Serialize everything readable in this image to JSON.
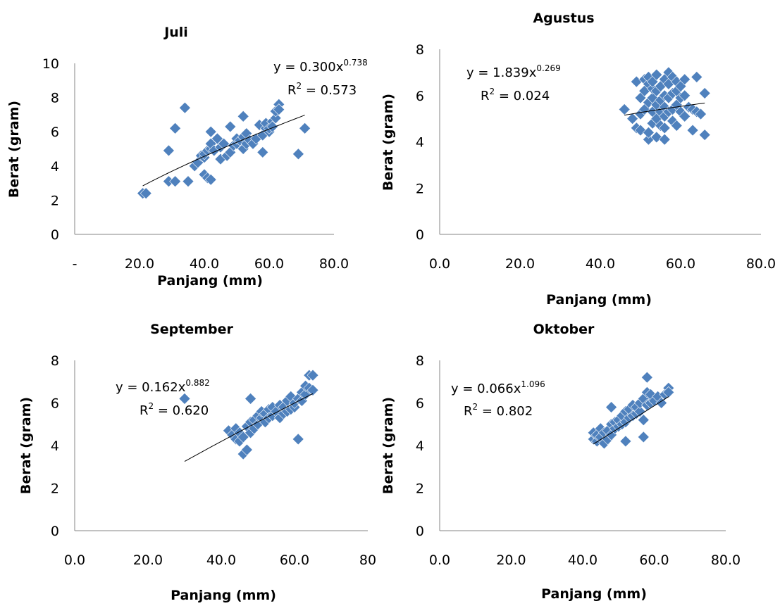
{
  "chart_data": [
    {
      "type": "scatter",
      "title": "Juli",
      "xlabel": "Panjang (mm)",
      "ylabel": "Berat (gram)",
      "xlim": [
        0,
        80
      ],
      "ylim": [
        0,
        10
      ],
      "xticks": [
        "-",
        "20.0",
        "40.0",
        "60.0",
        "80.0"
      ],
      "yticks": [
        "0",
        "2",
        "4",
        "6",
        "8",
        "10"
      ],
      "trendline": {
        "a": 0.3,
        "b": 0.738,
        "x_range": [
          21,
          71
        ]
      },
      "equation": {
        "base": "y = 0.300x",
        "exponent": "0.738"
      },
      "r2": {
        "label": "R",
        "sup": "2",
        "value": " = 0.573"
      },
      "points": [
        [
          21,
          2.4
        ],
        [
          22,
          2.4
        ],
        [
          29,
          4.9
        ],
        [
          29,
          3.1
        ],
        [
          31,
          3.1
        ],
        [
          31,
          6.2
        ],
        [
          34,
          7.4
        ],
        [
          35,
          3.1
        ],
        [
          37,
          4.0
        ],
        [
          38,
          4.2
        ],
        [
          39,
          4.6
        ],
        [
          40,
          4.5
        ],
        [
          40,
          4.7
        ],
        [
          40,
          3.5
        ],
        [
          41,
          3.3
        ],
        [
          42,
          3.2
        ],
        [
          41,
          4.9
        ],
        [
          42,
          5.0
        ],
        [
          42,
          5.3
        ],
        [
          42,
          6.0
        ],
        [
          43,
          4.9
        ],
        [
          44,
          5.6
        ],
        [
          45,
          4.4
        ],
        [
          45,
          5.1
        ],
        [
          46,
          5.3
        ],
        [
          47,
          4.6
        ],
        [
          48,
          4.8
        ],
        [
          48,
          6.3
        ],
        [
          49,
          5.2
        ],
        [
          50,
          5.3
        ],
        [
          50,
          5.6
        ],
        [
          51,
          5.5
        ],
        [
          52,
          5.0
        ],
        [
          52,
          5.7
        ],
        [
          52,
          6.9
        ],
        [
          53,
          5.9
        ],
        [
          53,
          5.3
        ],
        [
          54,
          5.5
        ],
        [
          55,
          5.3
        ],
        [
          56,
          5.6
        ],
        [
          57,
          6.4
        ],
        [
          58,
          5.8
        ],
        [
          58,
          4.8
        ],
        [
          59,
          6.2
        ],
        [
          59,
          6.5
        ],
        [
          60,
          6.0
        ],
        [
          60,
          6.2
        ],
        [
          61,
          6.6
        ],
        [
          61,
          6.3
        ],
        [
          62,
          6.8
        ],
        [
          62,
          7.2
        ],
        [
          63,
          7.6
        ],
        [
          63,
          7.3
        ],
        [
          69,
          4.7
        ],
        [
          71,
          6.2
        ]
      ]
    },
    {
      "type": "scatter",
      "title": "Agustus",
      "xlabel": "Panjang (mm)",
      "ylabel": "Berat (gram)",
      "xlim": [
        0,
        80
      ],
      "ylim": [
        0,
        8
      ],
      "xticks": [
        "0.0",
        "20.0",
        "40.0",
        "60.0",
        "80.0"
      ],
      "yticks": [
        "0",
        "2",
        "4",
        "6",
        "8"
      ],
      "trendline": {
        "a": 1.839,
        "b": 0.269,
        "x_range": [
          46,
          66
        ]
      },
      "equation": {
        "base": "y = 1.839x",
        "exponent": "0.269"
      },
      "r2": {
        "label": "R",
        "sup": "2",
        "value": " = 0.024"
      },
      "points": [
        [
          46,
          5.4
        ],
        [
          48,
          5.0
        ],
        [
          49,
          4.6
        ],
        [
          49,
          6.6
        ],
        [
          50,
          4.5
        ],
        [
          50,
          5.2
        ],
        [
          50,
          5.9
        ],
        [
          51,
          6.2
        ],
        [
          51,
          5.4
        ],
        [
          51,
          6.7
        ],
        [
          52,
          4.1
        ],
        [
          52,
          4.4
        ],
        [
          52,
          5.7
        ],
        [
          52,
          6.5
        ],
        [
          52,
          6.8
        ],
        [
          53,
          4.8
        ],
        [
          53,
          5.3
        ],
        [
          53,
          5.9
        ],
        [
          53,
          6.3
        ],
        [
          53,
          6.6
        ],
        [
          54,
          4.2
        ],
        [
          54,
          5.0
        ],
        [
          54,
          5.6
        ],
        [
          54,
          6.2
        ],
        [
          54,
          6.9
        ],
        [
          55,
          4.7
        ],
        [
          55,
          5.3
        ],
        [
          55,
          5.8
        ],
        [
          55,
          6.4
        ],
        [
          56,
          4.1
        ],
        [
          56,
          4.6
        ],
        [
          56,
          5.1
        ],
        [
          56,
          5.5
        ],
        [
          56,
          6.0
        ],
        [
          56,
          6.7
        ],
        [
          57,
          5.3
        ],
        [
          57,
          5.9
        ],
        [
          57,
          6.5
        ],
        [
          57,
          7.0
        ],
        [
          58,
          4.9
        ],
        [
          58,
          5.4
        ],
        [
          58,
          6.1
        ],
        [
          58,
          6.8
        ],
        [
          59,
          4.7
        ],
        [
          59,
          5.6
        ],
        [
          59,
          6.2
        ],
        [
          59,
          6.6
        ],
        [
          60,
          5.3
        ],
        [
          60,
          5.9
        ],
        [
          60,
          6.4
        ],
        [
          61,
          5.1
        ],
        [
          61,
          6.0
        ],
        [
          61,
          6.7
        ],
        [
          62,
          5.5
        ],
        [
          63,
          4.5
        ],
        [
          63,
          5.4
        ],
        [
          64,
          6.8
        ],
        [
          64,
          5.3
        ],
        [
          65,
          5.2
        ],
        [
          66,
          6.1
        ],
        [
          66,
          4.3
        ]
      ]
    },
    {
      "type": "scatter",
      "title": "September",
      "xlabel": "Panjang (mm)",
      "ylabel": "Berat (gram)",
      "xlim": [
        0,
        80
      ],
      "ylim": [
        0,
        8
      ],
      "xticks": [
        "0.0",
        "20.0",
        "40.0",
        "60.0",
        "80"
      ],
      "yticks": [
        "0",
        "2",
        "4",
        "6",
        "8"
      ],
      "trendline": {
        "a": 0.162,
        "b": 0.882,
        "x_range": [
          30,
          65
        ]
      },
      "equation": {
        "base": "y = 0.162x",
        "exponent": "0.882"
      },
      "r2": {
        "label": "R",
        "sup": "2",
        "value": " = 0.620"
      },
      "points": [
        [
          30,
          6.2
        ],
        [
          42,
          4.7
        ],
        [
          43,
          4.5
        ],
        [
          44,
          4.3
        ],
        [
          44,
          4.8
        ],
        [
          45,
          4.6
        ],
        [
          45,
          4.2
        ],
        [
          46,
          3.6
        ],
        [
          46,
          4.4
        ],
        [
          47,
          3.8
        ],
        [
          47,
          4.9
        ],
        [
          48,
          4.6
        ],
        [
          48,
          5.1
        ],
        [
          48,
          6.2
        ],
        [
          49,
          5.2
        ],
        [
          49,
          4.8
        ],
        [
          50,
          5.0
        ],
        [
          50,
          5.4
        ],
        [
          51,
          5.3
        ],
        [
          51,
          5.6
        ],
        [
          52,
          5.1
        ],
        [
          52,
          5.5
        ],
        [
          53,
          5.7
        ],
        [
          53,
          5.3
        ],
        [
          54,
          5.8
        ],
        [
          54,
          5.4
        ],
        [
          55,
          5.6
        ],
        [
          56,
          5.3
        ],
        [
          56,
          5.9
        ],
        [
          57,
          5.5
        ],
        [
          57,
          5.8
        ],
        [
          58,
          5.6
        ],
        [
          58,
          6.1
        ],
        [
          59,
          5.7
        ],
        [
          59,
          6.3
        ],
        [
          60,
          5.8
        ],
        [
          60,
          6.0
        ],
        [
          61,
          6.2
        ],
        [
          61,
          4.3
        ],
        [
          62,
          6.1
        ],
        [
          62,
          6.5
        ],
        [
          63,
          6.4
        ],
        [
          63,
          6.8
        ],
        [
          64,
          7.3
        ],
        [
          64,
          6.7
        ],
        [
          65,
          7.3
        ],
        [
          65,
          6.6
        ]
      ]
    },
    {
      "type": "scatter",
      "title": "Oktober",
      "xlabel": "Panjang (mm)",
      "ylabel": "Berat (gram)",
      "xlim": [
        0,
        80
      ],
      "ylim": [
        0,
        8
      ],
      "xticks": [
        "0.0",
        "20.0",
        "40.0",
        "60.0",
        "80.0"
      ],
      "yticks": [
        "0",
        "2",
        "4",
        "6",
        "8"
      ],
      "trendline": {
        "a": 0.066,
        "b": 1.096,
        "x_range": [
          43,
          64
        ]
      },
      "equation": {
        "base": "y = 0.066x",
        "exponent": "1.096"
      },
      "r2": {
        "label": "R",
        "sup": "2",
        "value": " = 0.802"
      },
      "points": [
        [
          43,
          4.3
        ],
        [
          43,
          4.6
        ],
        [
          44,
          4.2
        ],
        [
          44,
          4.5
        ],
        [
          45,
          4.4
        ],
        [
          45,
          4.8
        ],
        [
          46,
          4.1
        ],
        [
          46,
          4.6
        ],
        [
          47,
          4.3
        ],
        [
          47,
          4.7
        ],
        [
          48,
          4.5
        ],
        [
          48,
          5.0
        ],
        [
          48,
          5.8
        ],
        [
          49,
          4.8
        ],
        [
          49,
          5.1
        ],
        [
          50,
          4.9
        ],
        [
          50,
          5.2
        ],
        [
          51,
          5.0
        ],
        [
          51,
          5.4
        ],
        [
          52,
          4.2
        ],
        [
          52,
          5.1
        ],
        [
          52,
          5.6
        ],
        [
          53,
          5.3
        ],
        [
          53,
          5.7
        ],
        [
          54,
          5.4
        ],
        [
          54,
          5.9
        ],
        [
          55,
          5.5
        ],
        [
          55,
          5.8
        ],
        [
          56,
          5.6
        ],
        [
          56,
          6.0
        ],
        [
          57,
          5.2
        ],
        [
          57,
          4.4
        ],
        [
          57,
          6.2
        ],
        [
          58,
          5.9
        ],
        [
          58,
          6.5
        ],
        [
          58,
          7.2
        ],
        [
          59,
          6.0
        ],
        [
          59,
          6.4
        ],
        [
          60,
          6.1
        ],
        [
          61,
          6.3
        ],
        [
          62,
          6.0
        ],
        [
          63,
          6.4
        ],
        [
          64,
          6.7
        ],
        [
          64,
          6.5
        ]
      ]
    }
  ]
}
